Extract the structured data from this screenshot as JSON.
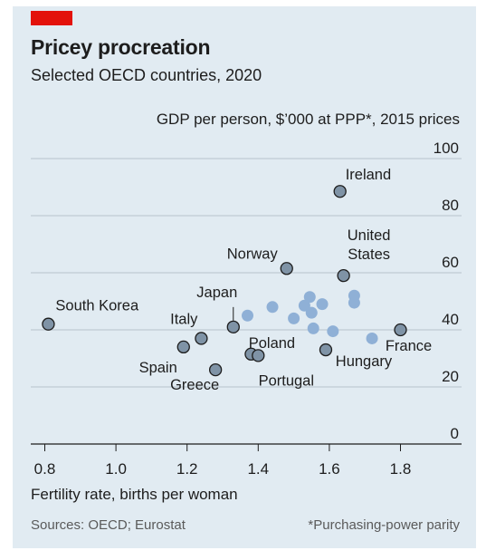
{
  "header": {
    "title": "Pricey procreation",
    "subtitle": "Selected OECD countries, 2020"
  },
  "footer": {
    "source": "Sources: OECD; Eurostat",
    "footnote": "*Purchasing-power parity"
  },
  "colors": {
    "accent_red": "#e3120b",
    "panel_background": "#e1ebf2",
    "highlight_marker": "#7f93a6",
    "background_marker": "#8fb0d6"
  },
  "chart_data": {
    "type": "scatter",
    "title": "Pricey procreation",
    "subtitle": "Selected OECD countries, 2020",
    "xlabel": "Fertility rate, births per woman",
    "ylabel": "GDP per person, $’000 at PPP*, 2015 prices",
    "xlim": [
      0.8,
      1.9
    ],
    "ylim": [
      0,
      100
    ],
    "xticks": [
      "0.8",
      "1.0",
      "1.2",
      "1.4",
      "1.6",
      "1.8"
    ],
    "xtick_values": [
      0.8,
      1.0,
      1.2,
      1.4,
      1.6,
      1.8
    ],
    "yticks": [
      "0",
      "20",
      "40",
      "60",
      "80",
      "100"
    ],
    "ytick_values": [
      0,
      20,
      40,
      60,
      80,
      100
    ],
    "grid": "horizontal",
    "y_axis_side": "right",
    "labelled_points": [
      {
        "label": "South Korea",
        "x": 0.81,
        "y": 42
      },
      {
        "label": "Spain",
        "x": 1.19,
        "y": 34
      },
      {
        "label": "Italy",
        "x": 1.24,
        "y": 37
      },
      {
        "label": "Greece",
        "x": 1.28,
        "y": 26
      },
      {
        "label": "Japan",
        "x": 1.33,
        "y": 41
      },
      {
        "label": "Poland",
        "x": 1.38,
        "y": 31.5
      },
      {
        "label": "Portugal",
        "x": 1.4,
        "y": 31
      },
      {
        "label": "Norway",
        "x": 1.48,
        "y": 61.5
      },
      {
        "label": "Hungary",
        "x": 1.59,
        "y": 33
      },
      {
        "label": "Ireland",
        "x": 1.63,
        "y": 88.5
      },
      {
        "label": "United States",
        "x": 1.64,
        "y": 59
      },
      {
        "label": "France",
        "x": 1.8,
        "y": 40
      }
    ],
    "other_points": [
      {
        "x": 1.37,
        "y": 45
      },
      {
        "x": 1.44,
        "y": 48
      },
      {
        "x": 1.5,
        "y": 44
      },
      {
        "x": 1.53,
        "y": 48.5
      },
      {
        "x": 1.545,
        "y": 51.5
      },
      {
        "x": 1.55,
        "y": 46
      },
      {
        "x": 1.555,
        "y": 40.5
      },
      {
        "x": 1.58,
        "y": 49
      },
      {
        "x": 1.61,
        "y": 39.5
      },
      {
        "x": 1.67,
        "y": 49.5
      },
      {
        "x": 1.67,
        "y": 52
      },
      {
        "x": 1.72,
        "y": 37
      }
    ]
  }
}
